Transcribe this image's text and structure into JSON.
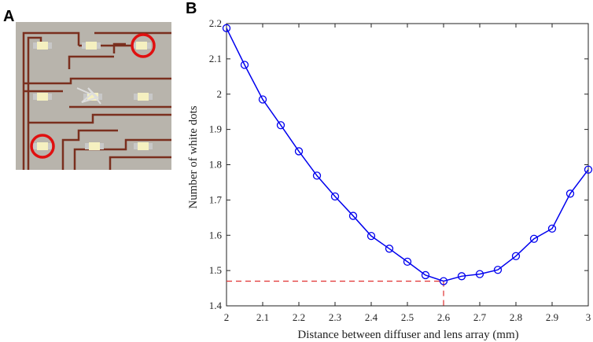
{
  "panels": {
    "a_label": "A",
    "b_label": "B"
  },
  "colors": {
    "series": "#0000ee",
    "reference": "#e03030",
    "highlight": "#e01010",
    "board": "#b8b4ac",
    "trace": "#7a2f1e"
  },
  "chart_data": {
    "type": "line",
    "title": "",
    "xlabel": "Distance between diffuser and lens array (mm)",
    "ylabel": "Number of white dots",
    "xlim": [
      2,
      3
    ],
    "ylim": [
      1.4,
      2.2
    ],
    "xticks": [
      "2",
      "2.1",
      "2.2",
      "2.3",
      "2.4",
      "2.5",
      "2.6",
      "2.7",
      "2.8",
      "2.9",
      "3"
    ],
    "yticks": [
      "1.4",
      "1.5",
      "1.6",
      "1.7",
      "1.8",
      "1.9",
      "2",
      "2.1",
      "2.2"
    ],
    "grid": false,
    "marker": "circle",
    "series": [
      {
        "x": [
          2.0,
          2.05,
          2.1,
          2.15,
          2.2,
          2.25,
          2.3,
          2.35,
          2.4,
          2.45,
          2.5,
          2.55,
          2.6,
          2.65,
          2.7,
          2.75,
          2.8,
          2.85,
          2.9,
          2.95,
          3.0
        ],
        "y": [
          2.187,
          2.083,
          1.985,
          1.912,
          1.838,
          1.769,
          1.71,
          1.655,
          1.598,
          1.562,
          1.525,
          1.487,
          1.47,
          1.484,
          1.49,
          1.502,
          1.541,
          1.59,
          1.619,
          1.718,
          1.786
        ]
      }
    ],
    "reference_point": {
      "x": 2.6,
      "y": 1.47
    }
  }
}
